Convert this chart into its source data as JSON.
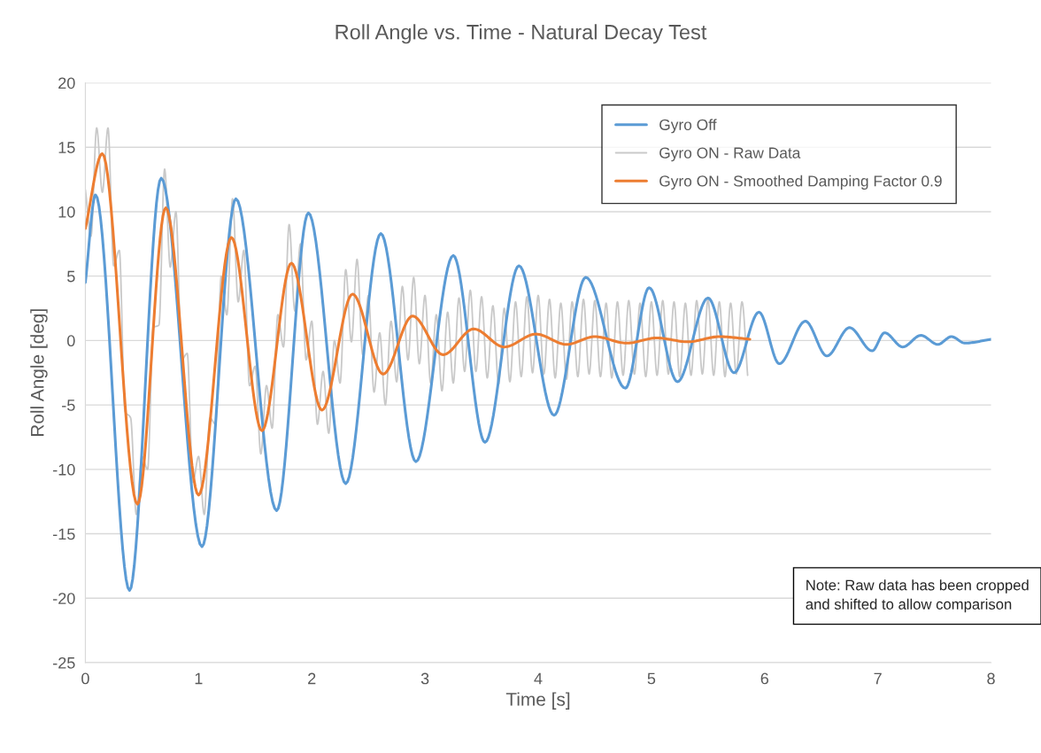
{
  "chart_data": {
    "type": "line",
    "title": "Roll Angle vs. Time - Natural Decay Test",
    "xlabel": "Time [s]",
    "ylabel": "Roll Angle [deg]",
    "xlim": [
      0,
      8
    ],
    "ylim": [
      -25,
      20
    ],
    "xticks": [
      0,
      1,
      2,
      3,
      4,
      5,
      6,
      7,
      8
    ],
    "yticks": [
      -25,
      -20,
      -15,
      -10,
      -5,
      0,
      5,
      10,
      15,
      20
    ],
    "grid": "y",
    "legend": "top right",
    "annotations": [
      "Note: Raw data has been cropped\nand shifted to allow comparison"
    ],
    "series": [
      {
        "name": "Gyro Off",
        "color": "#5b9bd5",
        "x": [
          0,
          0.09,
          0.39,
          0.67,
          1.03,
          1.33,
          1.69,
          1.97,
          2.3,
          2.61,
          2.92,
          3.25,
          3.53,
          3.83,
          4.14,
          4.42,
          4.77,
          4.98,
          5.23,
          5.5,
          5.73,
          5.95,
          6.13,
          6.36,
          6.55,
          6.75,
          6.95,
          7.06,
          7.22,
          7.38,
          7.53,
          7.65,
          7.77,
          8
        ],
        "values": [
          4.5,
          11.3,
          -19.4,
          12.6,
          -16,
          11,
          -13.2,
          9.9,
          -11.1,
          8.3,
          -9.4,
          6.6,
          -7.9,
          5.8,
          -5.8,
          4.9,
          -3.7,
          4.1,
          -3.2,
          3.3,
          -2.5,
          2.2,
          -1.8,
          1.5,
          -1.2,
          1,
          -0.8,
          0.6,
          -0.5,
          0.4,
          -0.3,
          0.3,
          -0.2,
          0.1
        ]
      },
      {
        "name": "Gyro ON - Raw Data",
        "color": "#c9c9c9",
        "x": [
          0,
          0.05,
          0.1,
          0.15,
          0.2,
          0.25,
          0.3,
          0.35,
          0.4,
          0.45,
          0.5,
          0.55,
          0.6,
          0.65,
          0.7,
          0.75,
          0.8,
          0.85,
          0.9,
          0.95,
          1.0,
          1.05,
          1.1,
          1.15,
          1.2,
          1.25,
          1.3,
          1.35,
          1.4,
          1.45,
          1.5,
          1.55,
          1.6,
          1.65,
          1.7,
          1.75,
          1.8,
          1.85,
          1.9,
          1.95,
          2.0,
          2.05,
          2.1,
          2.15,
          2.2,
          2.25,
          2.3,
          2.35,
          2.4,
          2.45,
          2.5,
          2.55,
          2.6,
          2.65,
          2.7,
          2.75,
          2.8,
          2.85,
          2.9,
          2.95,
          3.0,
          3.05,
          3.1,
          3.15,
          3.2,
          3.25,
          3.3,
          3.35,
          3.4,
          3.45,
          3.5,
          3.55,
          3.6,
          3.65,
          3.7,
          3.75,
          3.8,
          3.85,
          3.9,
          3.95,
          4.0,
          4.05,
          4.1,
          4.15,
          4.2,
          4.25,
          4.3,
          4.35,
          4.4,
          4.45,
          4.5,
          4.55,
          4.6,
          4.65,
          4.7,
          4.75,
          4.8,
          4.85,
          4.9,
          4.95,
          5.0,
          5.05,
          5.1,
          5.15,
          5.2,
          5.25,
          5.3,
          5.35,
          5.4,
          5.45,
          5.5,
          5.55,
          5.6,
          5.65,
          5.7,
          5.75,
          5.8,
          5.85
        ],
        "values": [
          11.7,
          8.1,
          16.5,
          11.5,
          16.5,
          5.8,
          7,
          -5.5,
          -6,
          -13.5,
          -9,
          -10,
          1,
          1.2,
          13.3,
          5.7,
          10,
          -1.5,
          -1,
          -11,
          -9,
          -13.5,
          -6,
          -6.5,
          5,
          2,
          11,
          3,
          7,
          -3.5,
          -2,
          -8.8,
          -3.5,
          -6.8,
          2,
          -0.5,
          9,
          2.3,
          7.5,
          -1.5,
          1.5,
          -6.5,
          -2.4,
          -7.2,
          0,
          -3.3,
          5.5,
          -0.1,
          6.3,
          -1.1,
          3.5,
          -4,
          0.6,
          -5,
          1.5,
          -3.2,
          4.2,
          -1.5,
          4.9,
          -1.8,
          3.5,
          -3.3,
          2,
          -3.9,
          2.2,
          -3.3,
          3.3,
          -2.4,
          3.9,
          -2.4,
          3.4,
          -2.9,
          2.7,
          -3.4,
          2.5,
          -3.2,
          3,
          -2.8,
          3.4,
          -2.5,
          3.5,
          -2.6,
          3.2,
          -2.9,
          2.9,
          -3,
          3,
          -2.8,
          3.2,
          -2.6,
          3.1,
          -2.8,
          2.9,
          -2.9,
          3,
          -2.7,
          3.1,
          -2.6,
          2.9,
          -2.8,
          3,
          -2.7,
          3.1,
          -2.6,
          3,
          -2.8,
          2.9,
          -2.7,
          3.1,
          -2.6,
          3.2,
          -2.7,
          3,
          -2.8,
          2.9,
          -2.6,
          3,
          -2.7
        ]
      },
      {
        "name": "Gyro ON - Smoothed Damping Factor 0.9",
        "color": "#ed7d31",
        "x": [
          0,
          0.15,
          0.46,
          0.71,
          1.0,
          1.29,
          1.56,
          1.82,
          2.09,
          2.36,
          2.63,
          2.89,
          3.16,
          3.43,
          3.7,
          3.98,
          4.25,
          4.5,
          4.78,
          5.05,
          5.32,
          5.6,
          5.87
        ],
        "values": [
          8.7,
          14.5,
          -12.7,
          10.3,
          -12,
          8,
          -7,
          6,
          -5.4,
          3.6,
          -2.6,
          1.9,
          -1.1,
          0.9,
          -0.5,
          0.5,
          -0.3,
          0.3,
          -0.2,
          0.2,
          -0.1,
          0.3,
          0.1
        ]
      }
    ]
  }
}
